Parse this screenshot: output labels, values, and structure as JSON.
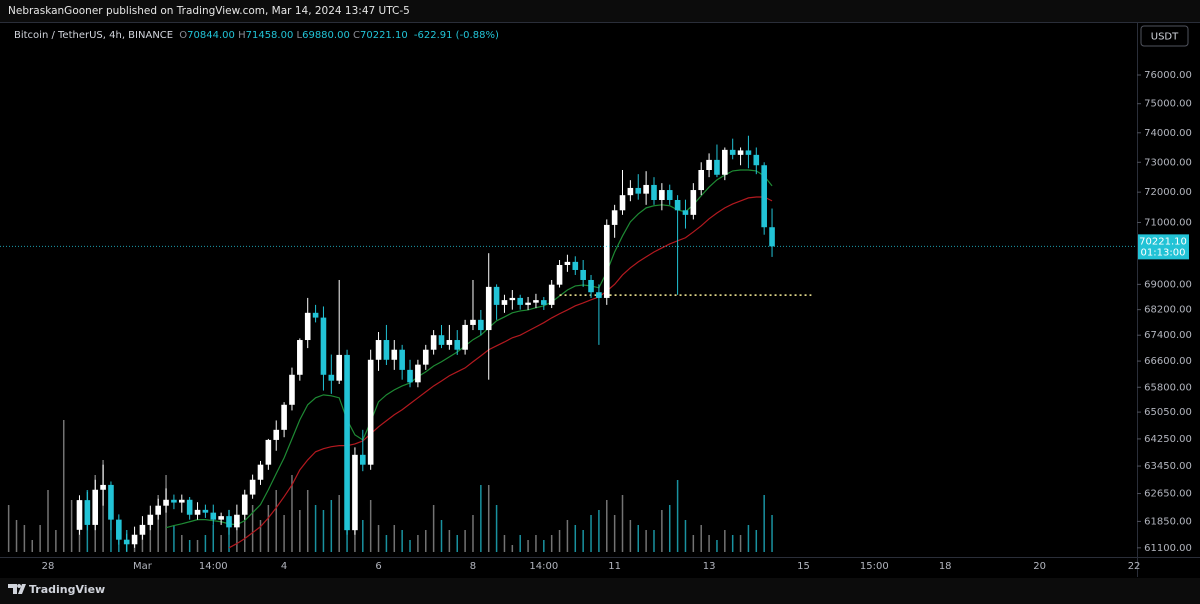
{
  "header": {
    "published": "NebraskanGooner published on TradingView.com, Mar 14, 2024 13:47 UTC-5"
  },
  "footer": {
    "brand": "TradingView"
  },
  "chart_data": {
    "type": "candlestick",
    "symbol": "Bitcoin / TetherUS, 4h, BINANCE",
    "ohlc_header": [
      {
        "key": "O",
        "text": "70844.00"
      },
      {
        "key": "H",
        "text": "71458.00"
      },
      {
        "key": "L",
        "text": "69880.00"
      },
      {
        "key": "C",
        "text": "70221.10"
      }
    ],
    "change": "-622.91 (-0.88%)",
    "currency": "USDT",
    "last_price_label": "70221.10",
    "countdown": "01:13:00",
    "log_scale": true,
    "grid": false,
    "up_color": "#ffffff",
    "down_color": "#22c3d6",
    "ylim": [
      60870,
      77060
    ],
    "yticks": [
      {
        "value": 76000,
        "label": "76000.00"
      },
      {
        "value": 75000,
        "label": "75000.00"
      },
      {
        "value": 74000,
        "label": "74000.00"
      },
      {
        "value": 73000,
        "label": "73000.00"
      },
      {
        "value": 72000,
        "label": "72000.00"
      },
      {
        "value": 71000,
        "label": "71000.00"
      },
      {
        "value": 69000,
        "label": "69000.00"
      },
      {
        "value": 68200,
        "label": "68200.00"
      },
      {
        "value": 67400,
        "label": "67400.00"
      },
      {
        "value": 66600,
        "label": "66600.00"
      },
      {
        "value": 65800,
        "label": "65800.00"
      },
      {
        "value": 65050,
        "label": "65050.00"
      },
      {
        "value": 64250,
        "label": "64250.00"
      },
      {
        "value": 63450,
        "label": "63450.00"
      },
      {
        "value": 62650,
        "label": "62650.00"
      },
      {
        "value": 61850,
        "label": "61850.00"
      },
      {
        "value": 61100,
        "label": "61100.00"
      }
    ],
    "volume_ylim": [
      0,
      40000
    ],
    "level_line": {
      "value": 68660,
      "color": "#fff59d"
    },
    "categories": [
      null,
      null,
      null,
      null,
      null,
      "28",
      null,
      null,
      null,
      null,
      null,
      null,
      null,
      null,
      null,
      null,
      null,
      "Mar",
      null,
      null,
      null,
      null,
      null,
      null,
      null,
      null,
      "14:00",
      null,
      null,
      null,
      null,
      null,
      null,
      null,
      null,
      "4",
      null,
      null,
      null,
      null,
      null,
      null,
      null,
      null,
      null,
      null,
      null,
      "6",
      null,
      null,
      null,
      null,
      null,
      null,
      null,
      null,
      null,
      null,
      null,
      "8",
      null,
      null,
      null,
      null,
      null,
      null,
      null,
      null,
      "14:00",
      null,
      null,
      null,
      null,
      null,
      null,
      null,
      null,
      "11",
      null,
      null,
      null,
      null,
      null,
      null,
      null,
      null,
      null,
      null,
      null,
      "13",
      null,
      null,
      null,
      null,
      null,
      null,
      null,
      null,
      null,
      null,
      null,
      "15",
      null,
      null,
      null,
      null,
      null,
      null,
      null,
      null,
      "15:00",
      null,
      null,
      null,
      null,
      null,
      null,
      null,
      null,
      "18",
      null,
      null,
      null,
      null,
      null,
      null,
      null,
      null,
      null,
      null,
      null,
      "20",
      null,
      null,
      null,
      null,
      null,
      null,
      null,
      null,
      null,
      null,
      null,
      "22"
    ],
    "open": [
      null,
      null,
      null,
      null,
      null,
      null,
      null,
      null,
      null,
      61610,
      62460,
      61750,
      62760,
      62900,
      61900,
      61330,
      61200,
      61470,
      61750,
      62040,
      62300,
      62470,
      62390,
      62470,
      62040,
      62180,
      62100,
      61900,
      62000,
      61680,
      62040,
      62620,
      63050,
      63490,
      64220,
      64520,
      65270,
      66180,
      67250,
      68100,
      67950,
      66180,
      66000,
      66790,
      61600,
      63780,
      63490,
      66640,
      67250,
      66640,
      66950,
      66330,
      65950,
      66490,
      66950,
      67400,
      67100,
      67250,
      66950,
      67720,
      67880,
      67560,
      68920,
      68350,
      68500,
      68570,
      68350,
      68420,
      68500,
      68350,
      68990,
      69620,
      69720,
      69460,
      69140,
      68750,
      68570,
      70920,
      71400,
      71900,
      72140,
      71950,
      72240,
      71740,
      72070,
      71740,
      71400,
      71250,
      72070,
      72740,
      73080,
      72580,
      73420,
      73250,
      73400,
      73250,
      72900,
      70844,
      null,
      null,
      null,
      null,
      null,
      null,
      null,
      null,
      null,
      null,
      null,
      null,
      null,
      null,
      null,
      null,
      null,
      null,
      null,
      null,
      null,
      null,
      null,
      null,
      null,
      null,
      null,
      null,
      null,
      null,
      null,
      null,
      null,
      null,
      null,
      null,
      null,
      null,
      null,
      null,
      null,
      null,
      null,
      null,
      null,
      null
    ],
    "high": [
      null,
      null,
      null,
      null,
      null,
      null,
      null,
      null,
      null,
      62600,
      62700,
      63050,
      63490,
      63000,
      62050,
      61500,
      61700,
      62000,
      62300,
      62500,
      62800,
      62620,
      62620,
      62550,
      62400,
      62330,
      62330,
      62100,
      62180,
      62330,
      62760,
      63200,
      63600,
      64250,
      64800,
      65350,
      66400,
      67300,
      68570,
      68350,
      68300,
      66800,
      69140,
      66950,
      64000,
      64520,
      66950,
      67500,
      67720,
      67250,
      67100,
      66640,
      66640,
      67100,
      67560,
      67720,
      67720,
      67560,
      67880,
      69140,
      68190,
      70000,
      69000,
      68670,
      68820,
      68670,
      68600,
      68700,
      68600,
      69140,
      69780,
      69950,
      69900,
      69780,
      69300,
      69000,
      71100,
      71580,
      72740,
      72400,
      72600,
      72700,
      72500,
      72300,
      72250,
      71900,
      71750,
      72300,
      73000,
      73300,
      73600,
      73500,
      73800,
      73500,
      73900,
      73500,
      73000,
      71458,
      null,
      null,
      null,
      null,
      null,
      null,
      null,
      null,
      null,
      null,
      null,
      null,
      null,
      null,
      null,
      null,
      null,
      null,
      null,
      null,
      null,
      null,
      null,
      null,
      null,
      null,
      null,
      null,
      null,
      null,
      null,
      null,
      null,
      null,
      null,
      null,
      null,
      null,
      null,
      null,
      null,
      null,
      null,
      null,
      null,
      null
    ],
    "low": [
      null,
      null,
      null,
      null,
      null,
      null,
      null,
      null,
      null,
      61470,
      61600,
      61600,
      62300,
      61600,
      61190,
      61000,
      61100,
      61330,
      61600,
      61900,
      62100,
      62200,
      62100,
      61900,
      61900,
      61950,
      61750,
      61750,
      61470,
      61600,
      61900,
      62500,
      62900,
      63340,
      63900,
      64300,
      65100,
      66000,
      67000,
      67800,
      65700,
      65600,
      65900,
      61470,
      61470,
      63300,
      63340,
      66300,
      66480,
      66330,
      66030,
      65800,
      65800,
      66330,
      66800,
      67000,
      66950,
      66790,
      66800,
      67560,
      67400,
      66030,
      67880,
      68100,
      68200,
      68200,
      68190,
      68250,
      68190,
      68250,
      68900,
      69400,
      69300,
      68920,
      68570,
      67100,
      68350,
      70500,
      71250,
      71700,
      71750,
      71580,
      71580,
      71400,
      71580,
      68670,
      70800,
      71100,
      71900,
      72500,
      72500,
      72400,
      73100,
      72900,
      72800,
      72600,
      70600,
      69880,
      null,
      null,
      null,
      null,
      null,
      null,
      null,
      null,
      null,
      null,
      null,
      null,
      null,
      null,
      null,
      null,
      null,
      null,
      null,
      null,
      null,
      null,
      null,
      null,
      null,
      null,
      null,
      null,
      null,
      null,
      null,
      null,
      null,
      null,
      null,
      null,
      null,
      null,
      null,
      null,
      null,
      null,
      null,
      null,
      null,
      null
    ],
    "close": [
      null,
      null,
      null,
      null,
      null,
      null,
      null,
      null,
      null,
      62460,
      61750,
      62760,
      62900,
      61900,
      61330,
      61200,
      61470,
      61750,
      62040,
      62300,
      62470,
      62390,
      62470,
      62040,
      62180,
      62100,
      61900,
      62000,
      61680,
      62040,
      62620,
      63050,
      63490,
      64220,
      64520,
      65270,
      66180,
      67250,
      68100,
      67950,
      66180,
      66000,
      66790,
      61600,
      63780,
      63490,
      66640,
      67250,
      66640,
      66950,
      66330,
      65950,
      66490,
      66950,
      67400,
      67100,
      67250,
      66950,
      67720,
      67880,
      67560,
      68920,
      68350,
      68500,
      68570,
      68350,
      68420,
      68500,
      68350,
      68990,
      69620,
      69720,
      69460,
      69140,
      68750,
      68570,
      70920,
      71400,
      71900,
      72140,
      71950,
      72240,
      71740,
      72070,
      71740,
      71400,
      71250,
      72070,
      72740,
      73080,
      72580,
      73420,
      73250,
      73400,
      73250,
      72900,
      70844,
      70221.1,
      null,
      null,
      null,
      null,
      null,
      null,
      null,
      null,
      null,
      null,
      null,
      null,
      null,
      null,
      null,
      null,
      null,
      null,
      null,
      null,
      null,
      null,
      null,
      null,
      null,
      null,
      null,
      null,
      null,
      null,
      null,
      null,
      null,
      null,
      null,
      null,
      null,
      null,
      null,
      null,
      null,
      null,
      null,
      null,
      null,
      null
    ],
    "volume": [
      11750,
      8000,
      6750,
      3000,
      6750,
      15500,
      5500,
      33000,
      13000,
      13000,
      15500,
      19250,
      23000,
      15500,
      6750,
      5500,
      4250,
      4250,
      6750,
      14250,
      19250,
      6750,
      4250,
      3000,
      3000,
      4250,
      6750,
      4250,
      10500,
      8000,
      14250,
      11750,
      8000,
      11750,
      15500,
      9250,
      19250,
      10500,
      15500,
      11750,
      10500,
      13000,
      14250,
      31750,
      21750,
      8000,
      13000,
      6750,
      4250,
      6750,
      5500,
      3000,
      4250,
      5500,
      11750,
      8000,
      5500,
      4250,
      5500,
      9250,
      16750,
      16750,
      11750,
      4250,
      1750,
      4250,
      3000,
      4250,
      3000,
      4250,
      5500,
      8000,
      6750,
      5500,
      9250,
      10500,
      13000,
      9250,
      14250,
      8000,
      6750,
      5500,
      5500,
      10500,
      11750,
      18000,
      8000,
      4250,
      6750,
      4250,
      3000,
      5500,
      4250,
      4250,
      6750,
      5500,
      14250,
      9250,
      null,
      null,
      null,
      null,
      null,
      null,
      null,
      null,
      null,
      null,
      null,
      null,
      null,
      null,
      null,
      null,
      null,
      null,
      null,
      null,
      null,
      null,
      null,
      null,
      null,
      null,
      null,
      null,
      null,
      null,
      null,
      null,
      null,
      null,
      null,
      null,
      null,
      null,
      null,
      null,
      null,
      null,
      null,
      null,
      null,
      null
    ],
    "overlays": [
      {
        "color": "#1e8a34",
        "values": [
          null,
          null,
          null,
          null,
          null,
          null,
          null,
          null,
          null,
          null,
          null,
          null,
          null,
          null,
          null,
          null,
          null,
          null,
          null,
          null,
          61670,
          61730,
          61780,
          61840,
          61900,
          61900,
          61870,
          61840,
          61780,
          61755,
          61870,
          62100,
          62330,
          62760,
          63230,
          63690,
          64250,
          64820,
          65270,
          65480,
          65570,
          65540,
          65480,
          64820,
          64370,
          64220,
          64760,
          65360,
          65570,
          65720,
          65840,
          65930,
          66120,
          66270,
          66450,
          66580,
          66730,
          66880,
          67070,
          67260,
          67400,
          67630,
          67850,
          67970,
          68100,
          68160,
          68190,
          68260,
          68320,
          68440,
          68630,
          68820,
          68950,
          68980,
          68950,
          68890,
          69400,
          70040,
          70560,
          71020,
          71280,
          71480,
          71550,
          71580,
          71550,
          71410,
          71350,
          71580,
          71880,
          72170,
          72410,
          72570,
          72710,
          72740,
          72740,
          72710,
          72540,
          72210,
          null,
          null,
          null,
          null,
          null,
          null,
          null,
          null,
          null,
          null,
          null,
          null,
          null,
          null,
          null,
          null,
          null,
          null,
          null,
          null,
          null,
          null,
          null,
          null,
          null,
          null,
          null,
          null,
          null,
          null,
          null,
          null,
          null,
          null,
          null,
          null,
          null,
          null,
          null,
          null,
          null,
          null,
          null,
          null,
          null,
          null
        ]
      },
      {
        "color": "#b3191f",
        "values": [
          null,
          null,
          null,
          null,
          null,
          null,
          null,
          null,
          null,
          null,
          null,
          null,
          null,
          null,
          null,
          null,
          null,
          null,
          null,
          null,
          null,
          null,
          null,
          null,
          null,
          null,
          null,
          null,
          61100,
          61220,
          61360,
          61530,
          61700,
          61950,
          62240,
          62560,
          62900,
          63340,
          63630,
          63870,
          63960,
          64020,
          64050,
          64050,
          64100,
          64190,
          64400,
          64610,
          64790,
          64970,
          65120,
          65300,
          65480,
          65660,
          65840,
          65990,
          66150,
          66270,
          66390,
          66580,
          66760,
          66950,
          67070,
          67190,
          67320,
          67400,
          67530,
          67660,
          67790,
          67940,
          68070,
          68190,
          68320,
          68410,
          68510,
          68600,
          68790,
          69000,
          69300,
          69530,
          69720,
          69880,
          70040,
          70170,
          70300,
          70400,
          70500,
          70690,
          70890,
          71120,
          71310,
          71480,
          71610,
          71710,
          71810,
          71840,
          71840,
          71710,
          null,
          null,
          null,
          null,
          null,
          null,
          null,
          null,
          null,
          null,
          null,
          null,
          null,
          null,
          null,
          null,
          null,
          null,
          null,
          null,
          null,
          null,
          null,
          null,
          null,
          null,
          null,
          null,
          null,
          null,
          null,
          null,
          null,
          null,
          null,
          null,
          null,
          null,
          null,
          null,
          null,
          null,
          null,
          null,
          null,
          null
        ]
      }
    ]
  }
}
